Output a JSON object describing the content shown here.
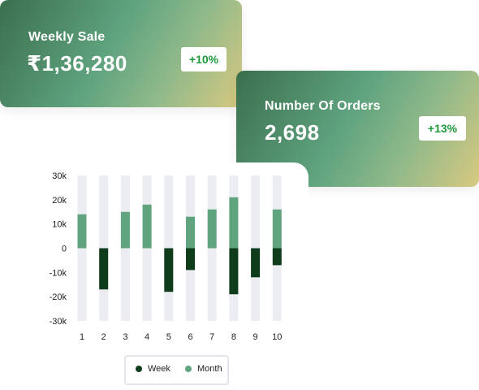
{
  "weekly_sale": {
    "title": "Weekly Sale",
    "value": "₹1,36,280",
    "change": "+10%"
  },
  "orders": {
    "title": "Number Of Orders",
    "value": "2,698",
    "change": "+13%"
  },
  "colors": {
    "week": "#0f3d1c",
    "month": "#5fa37f",
    "track": "#ececf3",
    "badge_text": "#1e9a3a"
  },
  "chart_data": {
    "type": "bar",
    "categories": [
      "1",
      "2",
      "3",
      "4",
      "5",
      "6",
      "7",
      "8",
      "9",
      "10"
    ],
    "series": [
      {
        "name": "Week",
        "values": [
          0,
          -17,
          0,
          0,
          -18,
          -9,
          0,
          -19,
          -12,
          -7
        ]
      },
      {
        "name": "Month",
        "values": [
          14,
          0,
          15,
          18,
          0,
          13,
          16,
          21,
          0,
          16
        ]
      }
    ],
    "y_ticks": [
      "30k",
      "20k",
      "10k",
      "0",
      "-10k",
      "-20k",
      "-30k"
    ],
    "ylim": [
      -30,
      30
    ],
    "unit": "k",
    "grid": false,
    "legend_position": "bottom-center"
  }
}
